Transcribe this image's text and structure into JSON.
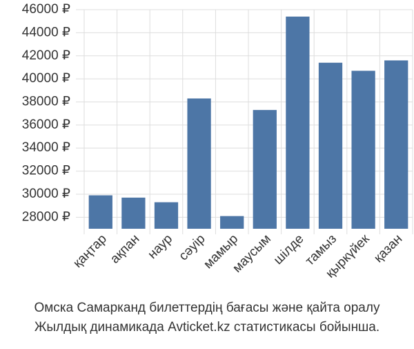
{
  "chart_data": {
    "type": "bar",
    "caption": [
      "Омска Самарканд билеттердің бағасы және қайта оралу",
      "Жылдық динамикада Avticket.kz статистикасы бойынша."
    ],
    "categories": [
      "қаңтар",
      "ақпан",
      "наур",
      "сәуір",
      "мамыр",
      "маусым",
      "шілде",
      "тамыз",
      "қыркүйек",
      "қазан"
    ],
    "values": [
      29900,
      29700,
      29300,
      38300,
      28100,
      37300,
      45400,
      41400,
      40700,
      41600
    ],
    "color": "#4d76a6",
    "ylim": [
      27000,
      46000
    ],
    "yticks": [
      {
        "value": 28000,
        "label": "28000 ₽"
      },
      {
        "value": 30000,
        "label": "30000 ₽"
      },
      {
        "value": 32000,
        "label": "32000 ₽"
      },
      {
        "value": 34000,
        "label": "34000 ₽"
      },
      {
        "value": 36000,
        "label": "36000 ₽"
      },
      {
        "value": 38000,
        "label": "38000 ₽"
      },
      {
        "value": 40000,
        "label": "40000 ₽"
      },
      {
        "value": 42000,
        "label": "42000 ₽"
      },
      {
        "value": 44000,
        "label": "44000 ₽"
      },
      {
        "value": 46000,
        "label": "46000 ₽"
      }
    ],
    "grid": true
  }
}
